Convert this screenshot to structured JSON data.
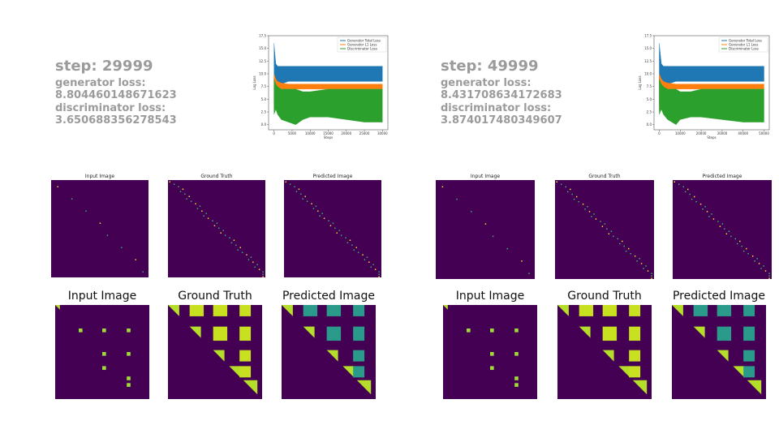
{
  "panels": [
    {
      "step": "step: 29999",
      "generator_loss_label": "generator loss:",
      "generator_loss": "8.804460148671623",
      "discriminator_loss_label": "discriminator loss:",
      "discriminator_loss": "3.650688356278543",
      "loss_chart": {
        "type": "area",
        "x_label": "Steps",
        "y_label": "Log Loss",
        "xlim": [
          -1500,
          31500
        ],
        "xticks": [
          0,
          5000,
          10000,
          15000,
          20000,
          25000,
          30000
        ],
        "ylim": [
          -1,
          17.5
        ],
        "yticks": [
          {
            "value": 0,
            "label": "0.0"
          },
          {
            "value": 2.5,
            "label": "2.5"
          },
          {
            "value": 5,
            "label": "5.0"
          },
          {
            "value": 7.5,
            "label": "7.5"
          },
          {
            "value": 10,
            "label": "10.0"
          },
          {
            "value": 12.5,
            "label": "12.5"
          },
          {
            "value": 15,
            "label": "15.0"
          },
          {
            "value": 17.5,
            "label": "17.5"
          }
        ],
        "series": [
          {
            "name": "Generator Total Loss",
            "color": "#1f77b4",
            "x": [
              0,
              500,
              1000,
              2000,
              4000,
              6000,
              8000,
              10000,
              15000,
              20000,
              25000,
              30000
            ],
            "low": [
              4,
              8,
              7.5,
              8,
              8.5,
              8.5,
              8.5,
              8.5,
              8.5,
              8.5,
              8.5,
              8.5
            ],
            "high": [
              16,
              12,
              11.5,
              11.5,
              11.5,
              11.5,
              11.5,
              11.5,
              11.5,
              11.5,
              11.5,
              11.5
            ]
          },
          {
            "name": "Generator L1 Loss",
            "color": "#ff7f0e",
            "x": [
              0,
              500,
              1000,
              2000,
              4000,
              6000,
              8000,
              10000,
              15000,
              20000,
              25000,
              30000
            ],
            "low": [
              3,
              6.5,
              6.5,
              6.5,
              6.8,
              7,
              7,
              7,
              7,
              7,
              7,
              7
            ],
            "high": [
              10,
              9,
              8.5,
              8.2,
              8,
              8,
              8,
              8,
              8,
              8,
              8,
              8
            ]
          },
          {
            "name": "Discriminator Loss",
            "color": "#2ca02c",
            "x": [
              0,
              500,
              1000,
              2000,
              4000,
              6000,
              8000,
              10000,
              15000,
              20000,
              25000,
              30000
            ],
            "low": [
              2,
              3,
              2,
              1,
              0.5,
              0,
              1,
              1.5,
              1.5,
              1,
              0.5,
              0.5
            ],
            "high": [
              9,
              8,
              7.5,
              7,
              7,
              7,
              6.5,
              6.5,
              7,
              7,
              7,
              7
            ]
          }
        ]
      },
      "image_rows": [
        {
          "titles": [
            "Input Image",
            "Ground Truth",
            "Predicted Image"
          ]
        },
        {
          "titles": [
            "Input Image",
            "Ground Truth",
            "Predicted Image"
          ]
        }
      ]
    },
    {
      "step": "step: 49999",
      "generator_loss_label": "generator loss:",
      "generator_loss": "8.431708634172683",
      "discriminator_loss_label": "discriminator loss:",
      "discriminator_loss": "3.874017480349607",
      "loss_chart": {
        "type": "area",
        "x_label": "Steps",
        "y_label": "Log Loss",
        "xlim": [
          -2500,
          52500
        ],
        "xticks": [
          0,
          10000,
          20000,
          30000,
          40000,
          50000
        ],
        "ylim": [
          -1,
          17.5
        ],
        "yticks": [
          {
            "value": 0,
            "label": "0.0"
          },
          {
            "value": 2.5,
            "label": "2.5"
          },
          {
            "value": 5,
            "label": "5.0"
          },
          {
            "value": 7.5,
            "label": "7.5"
          },
          {
            "value": 10,
            "label": "10.0"
          },
          {
            "value": 12.5,
            "label": "12.5"
          },
          {
            "value": 15,
            "label": "15.0"
          },
          {
            "value": 17.5,
            "label": "17.5"
          }
        ],
        "series": [
          {
            "name": "Generator Total Loss",
            "color": "#1f77b4",
            "x": [
              0,
              1000,
              2000,
              4000,
              8000,
              10000,
              15000,
              20000,
              30000,
              40000,
              50000
            ],
            "low": [
              4,
              8,
              7.5,
              8,
              8.5,
              8.5,
              8.5,
              8.5,
              8.5,
              8.5,
              8.5
            ],
            "high": [
              16,
              12,
              11.5,
              11.5,
              11.5,
              11.5,
              11.5,
              11.5,
              11.5,
              11.5,
              11.5
            ]
          },
          {
            "name": "Generator L1 Loss",
            "color": "#ff7f0e",
            "x": [
              0,
              1000,
              2000,
              4000,
              8000,
              10000,
              15000,
              20000,
              30000,
              40000,
              50000
            ],
            "low": [
              3,
              6.5,
              6.5,
              6.5,
              7,
              7,
              7,
              7,
              7,
              7,
              7
            ],
            "high": [
              10,
              9,
              8.5,
              8.2,
              8,
              8,
              8,
              8,
              8,
              8,
              8
            ]
          },
          {
            "name": "Discriminator Loss",
            "color": "#2ca02c",
            "x": [
              0,
              1000,
              2000,
              4000,
              8000,
              10000,
              15000,
              20000,
              30000,
              40000,
              50000
            ],
            "low": [
              2,
              3,
              2,
              1,
              0,
              1,
              1.5,
              1.5,
              1,
              0.5,
              0.5
            ],
            "high": [
              9,
              8,
              7.5,
              7,
              7,
              6.5,
              6.5,
              7,
              7,
              7,
              7
            ]
          }
        ]
      },
      "image_rows": [
        {
          "titles": [
            "Input Image",
            "Ground Truth",
            "Predicted Image"
          ]
        },
        {
          "titles": [
            "Input Image",
            "Ground Truth",
            "Predicted Image"
          ]
        }
      ]
    }
  ]
}
